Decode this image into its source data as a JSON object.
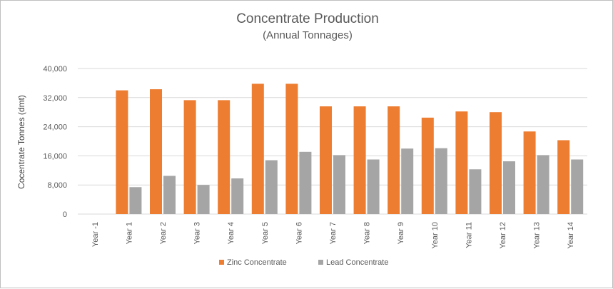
{
  "chart_data": {
    "type": "bar",
    "title": "Concentrate Production",
    "subtitle": "(Annual Tonnages)",
    "xlabel": "",
    "ylabel": "Cocentrate Tonnes (dmt)",
    "ylim": [
      0,
      40000
    ],
    "yticks": [
      "0",
      "8,000",
      "16,000",
      "24,000",
      "32,000",
      "40,000"
    ],
    "ytick_values": [
      0,
      8000,
      16000,
      24000,
      32000,
      40000
    ],
    "grid": true,
    "legend_position": "bottom",
    "categories": [
      "Year -1",
      "Year 1",
      "Year 2",
      "Year 3",
      "Year 4",
      "Year 5",
      "Year 6",
      "Year 7",
      "Year 8",
      "Year 9",
      "Year 10",
      "Year 11",
      "Year 12",
      "Year 13",
      "Year 14"
    ],
    "series": [
      {
        "name": "Zinc Concentrate",
        "color": "#ed7d31",
        "values": [
          0,
          34000,
          34300,
          31300,
          31300,
          35800,
          35800,
          29600,
          29600,
          29600,
          26500,
          28200,
          28000,
          22700,
          20300
        ]
      },
      {
        "name": "Lead Concentrate",
        "color": "#a5a5a5",
        "values": [
          0,
          7400,
          10500,
          8000,
          9800,
          14800,
          17100,
          16200,
          15000,
          18000,
          18100,
          12300,
          14500,
          16200,
          15000
        ]
      }
    ]
  }
}
